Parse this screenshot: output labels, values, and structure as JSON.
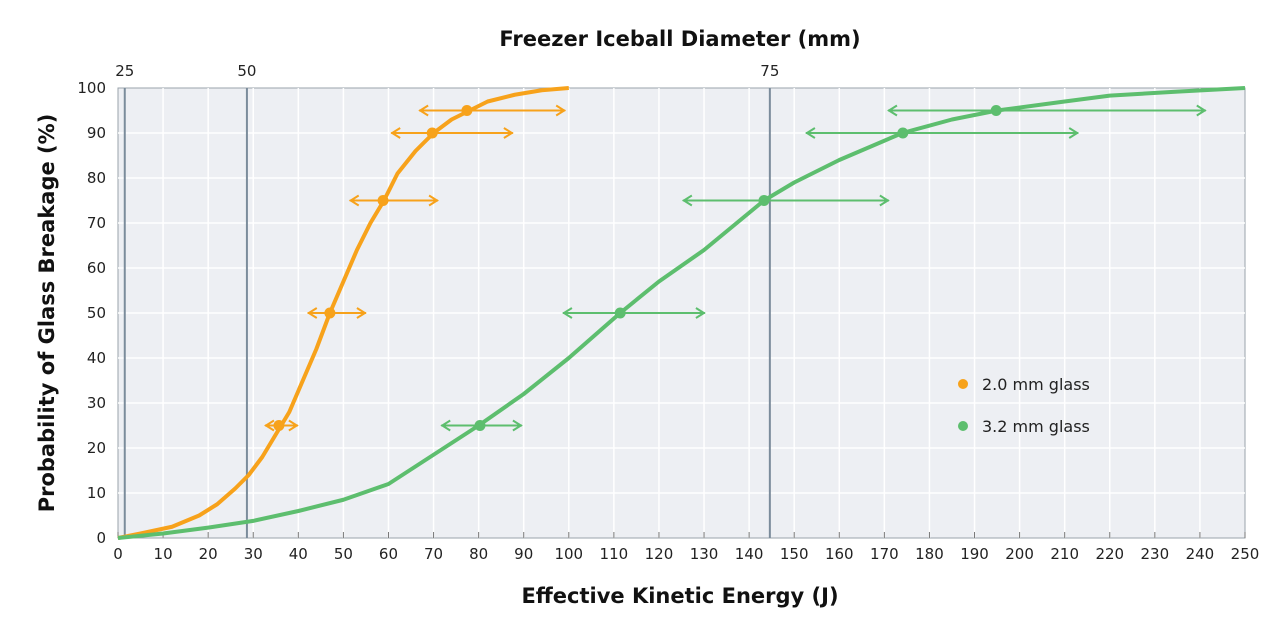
{
  "chart_data": {
    "type": "line",
    "top_axis_title": "Freezer Iceball Diameter (mm)",
    "xlabel": "Effective Kinetic Energy (J)",
    "ylabel": "Probability of Glass Breakage (%)",
    "xlim": [
      0,
      250
    ],
    "ylim": [
      0,
      100
    ],
    "x_ticks": [
      0,
      10,
      20,
      30,
      40,
      50,
      60,
      70,
      80,
      90,
      100,
      110,
      120,
      130,
      140,
      150,
      160,
      170,
      180,
      190,
      200,
      210,
      220,
      230,
      240,
      250
    ],
    "y_ticks": [
      0,
      10,
      20,
      30,
      40,
      50,
      60,
      70,
      80,
      90,
      100
    ],
    "grid": true,
    "background": "#EDEFF3",
    "legend_position": "lower-right",
    "diameter_markers": [
      {
        "label": "25",
        "energy": 1.5
      },
      {
        "label": "50",
        "energy": 28.6
      },
      {
        "label": "75",
        "energy": 144.6
      }
    ],
    "series": [
      {
        "name": "2.0 mm glass",
        "color": "#F7A21B",
        "curve": [
          [
            0,
            0
          ],
          [
            5,
            1
          ],
          [
            12,
            2.5
          ],
          [
            18,
            5
          ],
          [
            22,
            7.5
          ],
          [
            26,
            11
          ],
          [
            29,
            14
          ],
          [
            32,
            18
          ],
          [
            35,
            23
          ],
          [
            38,
            28
          ],
          [
            41,
            35
          ],
          [
            44,
            42
          ],
          [
            47,
            50
          ],
          [
            50,
            57
          ],
          [
            53,
            64
          ],
          [
            56,
            70
          ],
          [
            59,
            75
          ],
          [
            62,
            81
          ],
          [
            66,
            86
          ],
          [
            70,
            90
          ],
          [
            74,
            93
          ],
          [
            78,
            95
          ],
          [
            82,
            97
          ],
          [
            88,
            98.5
          ],
          [
            94,
            99.5
          ],
          [
            100,
            100
          ]
        ],
        "points": [
          {
            "x": 35.7,
            "y": 25,
            "xmin": 32.6,
            "xmax": 39.9
          },
          {
            "x": 47.0,
            "y": 50,
            "xmin": 42.1,
            "xmax": 55.0
          },
          {
            "x": 58.8,
            "y": 75,
            "xmin": 51.4,
            "xmax": 71.0
          },
          {
            "x": 69.7,
            "y": 90,
            "xmin": 60.6,
            "xmax": 87.6
          },
          {
            "x": 77.4,
            "y": 95,
            "xmin": 66.8,
            "xmax": 99.2
          }
        ]
      },
      {
        "name": "3.2 mm glass",
        "color": "#5DBE6E",
        "curve": [
          [
            0,
            0
          ],
          [
            10,
            1
          ],
          [
            20,
            2.3
          ],
          [
            30,
            3.8
          ],
          [
            40,
            6
          ],
          [
            50,
            8.5
          ],
          [
            60,
            12
          ],
          [
            70,
            18.5
          ],
          [
            80,
            25
          ],
          [
            90,
            32
          ],
          [
            100,
            40
          ],
          [
            111.4,
            50
          ],
          [
            120,
            57
          ],
          [
            130,
            64
          ],
          [
            143.3,
            75
          ],
          [
            150,
            79
          ],
          [
            160,
            84
          ],
          [
            174,
            90
          ],
          [
            185,
            93
          ],
          [
            195,
            95
          ],
          [
            210,
            97
          ],
          [
            220,
            98.3
          ],
          [
            235,
            99.2
          ],
          [
            250,
            100
          ]
        ],
        "points": [
          {
            "x": 80.3,
            "y": 25,
            "xmin": 71.7,
            "xmax": 89.6
          },
          {
            "x": 111.4,
            "y": 50,
            "xmin": 98.7,
            "xmax": 130.2
          },
          {
            "x": 143.3,
            "y": 75,
            "xmin": 125.3,
            "xmax": 171.0
          },
          {
            "x": 174.1,
            "y": 90,
            "xmin": 152.6,
            "xmax": 213.0
          },
          {
            "x": 194.8,
            "y": 95,
            "xmin": 170.8,
            "xmax": 241.3
          }
        ]
      }
    ]
  }
}
